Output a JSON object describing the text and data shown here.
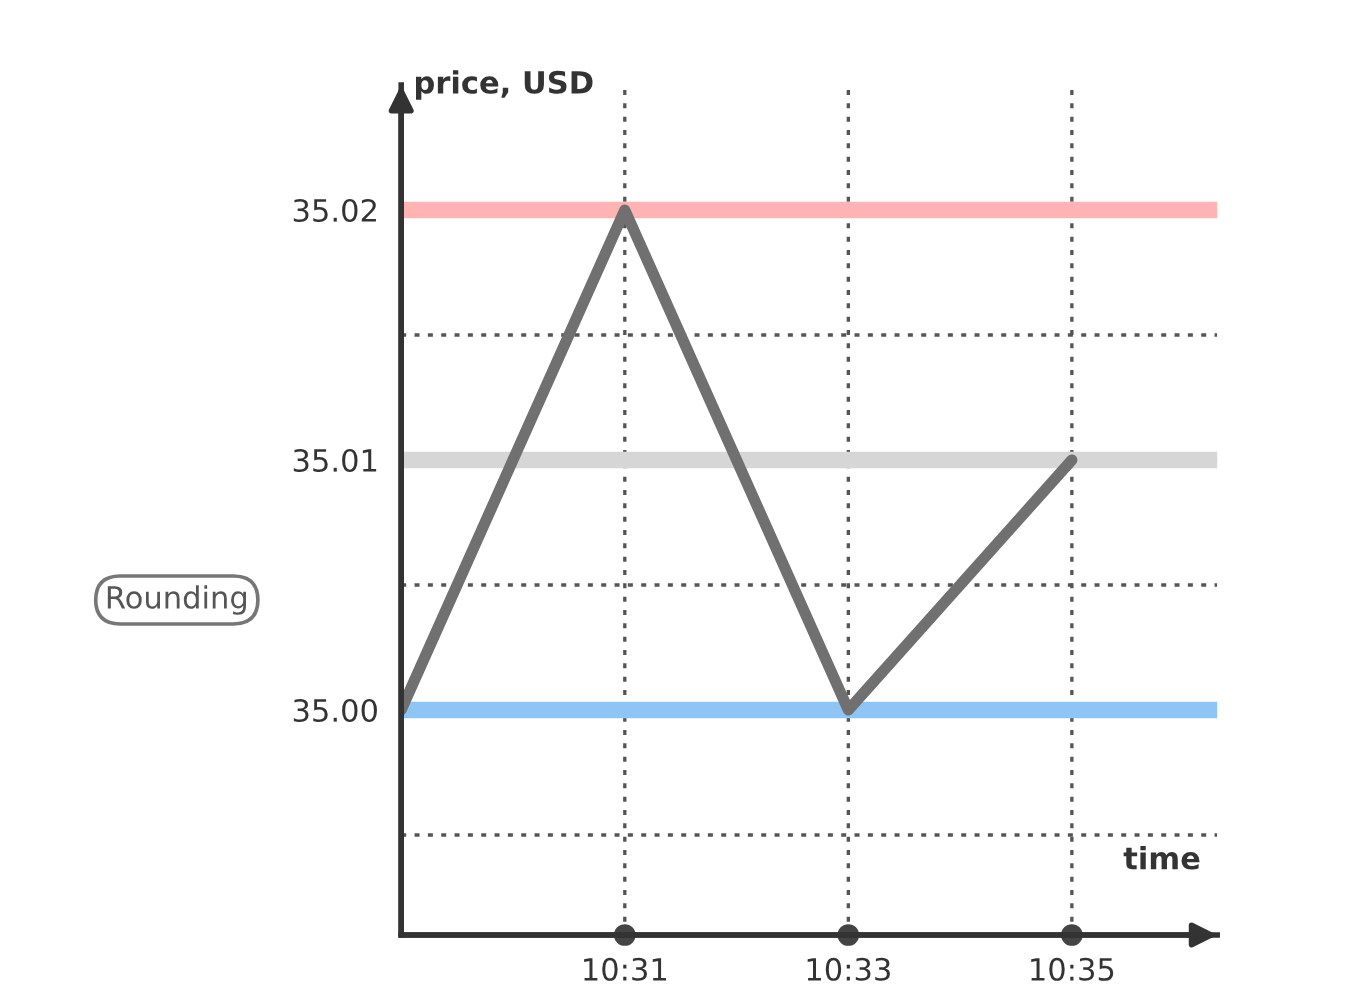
{
  "chart_data": {
    "type": "line",
    "xlabel": "time",
    "ylabel": "price, USD",
    "x": [
      10.48333,
      10.51667,
      10.55,
      10.58333
    ],
    "series": [
      {
        "color": "#707070",
        "values": [
          35.0,
          35.02,
          35.0,
          35.01
        ]
      }
    ],
    "xlim": [
      10.48333,
      10.605
    ],
    "ylim": [
      34.991,
      35.025
    ],
    "xticks": [
      {
        "value": 10.51667,
        "label": "10:31"
      },
      {
        "value": 10.55,
        "label": "10:33"
      },
      {
        "value": 10.58333,
        "label": "10:35"
      }
    ],
    "yticks": [
      {
        "value": 34.995,
        "label": null
      },
      {
        "value": 35.0,
        "label": "35.00"
      },
      {
        "value": 35.005,
        "label": null
      },
      {
        "value": 35.01,
        "label": "35.01"
      },
      {
        "value": 35.015,
        "label": null
      },
      {
        "value": 35.02,
        "label": "35.02"
      }
    ],
    "ref_lines": [
      {
        "axis": "y",
        "value": 35.02,
        "label": null,
        "color": "#ffb3b3"
      },
      {
        "axis": "y",
        "value": 35.01,
        "label": null,
        "color": "#d6d6d6"
      },
      {
        "axis": "y",
        "value": 35.0,
        "label": null,
        "color": "#8ec5f5"
      }
    ],
    "annotations": [
      "Rounding"
    ],
    "grid": true,
    "marker": "none",
    "line_style": "solid",
    "legend": false
  }
}
